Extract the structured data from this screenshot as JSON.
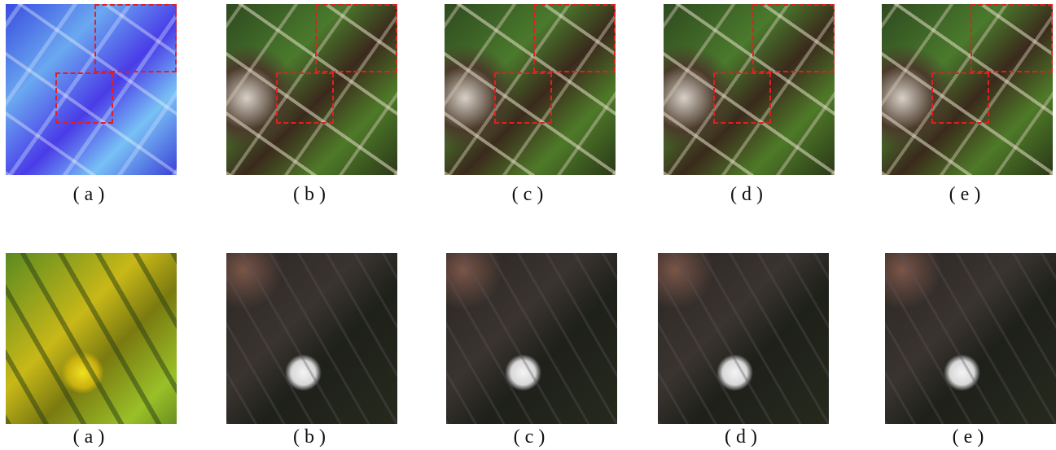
{
  "rows": [
    {
      "panels": [
        {
          "caption": "(a)"
        },
        {
          "caption": "(b)"
        },
        {
          "caption": "(c)"
        },
        {
          "caption": "(d)"
        },
        {
          "caption": "(e)"
        }
      ]
    },
    {
      "panels": [
        {
          "caption": "(a)"
        },
        {
          "caption": "(b)"
        },
        {
          "caption": "(c)"
        },
        {
          "caption": "(d)"
        },
        {
          "caption": "(e)"
        }
      ]
    }
  ]
}
